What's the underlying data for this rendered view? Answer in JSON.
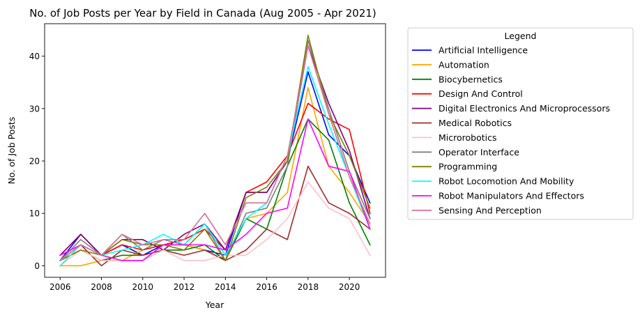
{
  "chart_data": {
    "type": "line",
    "title": "No. of Job Posts per Year by Field in Canada (Aug 2005 - Apr 2021)",
    "xlabel": "Year",
    "ylabel": "No. of Job Posts",
    "x": [
      2006,
      2007,
      2008,
      2009,
      2010,
      2011,
      2012,
      2013,
      2014,
      2015,
      2016,
      2017,
      2018,
      2019,
      2020,
      2021
    ],
    "xlim": [
      2005.25,
      2021.75
    ],
    "ylim": [
      -2.2,
      46.2
    ],
    "xticks": [
      2006,
      2008,
      2010,
      2012,
      2014,
      2016,
      2018,
      2020
    ],
    "yticks": [
      0,
      10,
      20,
      30,
      40
    ],
    "grid": false,
    "legend": {
      "title": "Legend",
      "placement": "outside-right"
    },
    "series": [
      {
        "name": "Artificial Intelligence",
        "color": "#0000ff",
        "values": [
          1,
          6,
          2,
          4,
          2,
          4,
          4,
          3,
          2,
          14,
          14,
          20,
          37,
          25,
          21,
          12
        ]
      },
      {
        "name": "Automation",
        "color": "#ffa500",
        "values": [
          0,
          0,
          1,
          1,
          3,
          4,
          4,
          3,
          1,
          9,
          10,
          14,
          34,
          19,
          14,
          8
        ]
      },
      {
        "name": "Biocybernetics",
        "color": "#008000",
        "values": [
          1,
          3,
          1,
          2,
          2,
          3,
          3,
          4,
          1,
          9,
          7,
          19,
          28,
          24,
          12,
          4
        ]
      },
      {
        "name": "Design And Control",
        "color": "#ff0000",
        "values": [
          2,
          6,
          2,
          4,
          3,
          4,
          5,
          7,
          3,
          14,
          16,
          21,
          31,
          28,
          26,
          10
        ]
      },
      {
        "name": "Digital Electronics And Microprocessors",
        "color": "#800080",
        "values": [
          2,
          6,
          2,
          5,
          5,
          3,
          6,
          8,
          3,
          14,
          14,
          20,
          42,
          31,
          22,
          9
        ]
      },
      {
        "name": "Medical Robotics",
        "color": "#a52a2a",
        "values": [
          1,
          4,
          0,
          3,
          2,
          3,
          2,
          3,
          1,
          3,
          7,
          5,
          19,
          12,
          10,
          7
        ]
      },
      {
        "name": "Microrobotics",
        "color": "#ffc0cb",
        "values": [
          0,
          3,
          1,
          1,
          1,
          3,
          1,
          1,
          2,
          2,
          5,
          9,
          16,
          11,
          9,
          2
        ]
      },
      {
        "name": "Operator Interface",
        "color": "#808080",
        "values": [
          1,
          5,
          2,
          6,
          3,
          5,
          4,
          8,
          1,
          10,
          11,
          19,
          43,
          30,
          18,
          9
        ]
      },
      {
        "name": "Programming",
        "color": "#808000",
        "values": [
          1,
          3,
          2,
          5,
          4,
          4,
          3,
          7,
          1,
          13,
          15,
          20,
          44,
          29,
          21,
          11
        ]
      },
      {
        "name": "Robot Locomotion And Mobility",
        "color": "#00ffff",
        "values": [
          0,
          4,
          2,
          3,
          4,
          6,
          4,
          8,
          2,
          9,
          12,
          21,
          38,
          27,
          17,
          7
        ]
      },
      {
        "name": "Robot Manipulators And Effectors",
        "color": "#ff00ff",
        "values": [
          2,
          4,
          2,
          1,
          1,
          4,
          4,
          4,
          3,
          6,
          10,
          11,
          28,
          19,
          18,
          7
        ]
      },
      {
        "name": "Sensing And Perception",
        "color": "#db7093",
        "values": [
          1,
          4,
          2,
          6,
          4,
          5,
          5,
          10,
          4,
          12,
          12,
          21,
          42,
          29,
          17,
          8
        ]
      }
    ]
  }
}
